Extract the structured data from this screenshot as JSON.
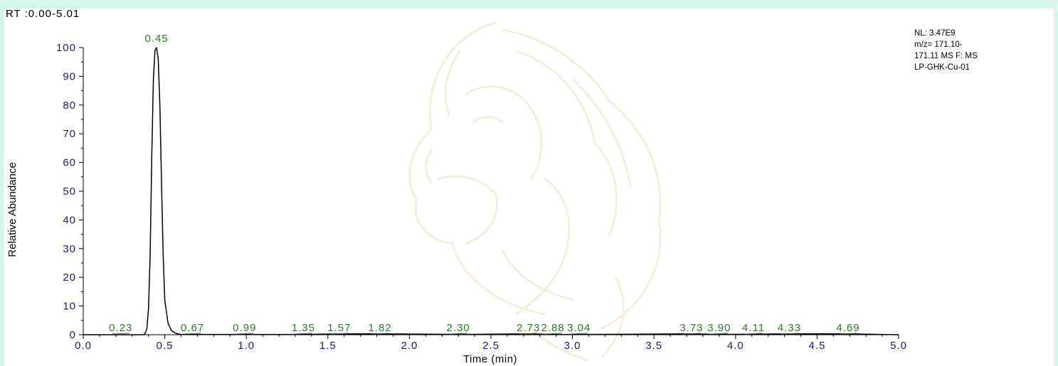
{
  "header": {
    "rt_range": "RT :0.00-5.01"
  },
  "info_box": {
    "lines": [
      "NL: 3.47E9",
      "m/z= 171.10-",
      "171.11 MS  F: MS",
      "LP-GHK-Cu-01"
    ]
  },
  "colors": {
    "trace": "#000000",
    "peak_labels": "#2a7a2a",
    "tick_labels": "#1c1c70",
    "background": "#d8f7ec"
  },
  "watermark": {
    "icon": "lion-head-watermark-icon"
  },
  "chart_data": {
    "type": "line",
    "title": "",
    "xlabel": "Time (min)",
    "ylabel": "Relative Abundance",
    "xlim": [
      0.0,
      5.0
    ],
    "ylim": [
      0,
      100
    ],
    "x_ticks": [
      "0.0",
      "0.5",
      "1.0",
      "1.5",
      "2.0",
      "2.5",
      "3.0",
      "3.5",
      "4.0",
      "4.5",
      "5.0"
    ],
    "y_ticks": [
      "0",
      "10",
      "20",
      "30",
      "40",
      "50",
      "60",
      "70",
      "80",
      "90",
      "100"
    ],
    "grid": false,
    "series": [
      {
        "x": [
          0.0,
          0.37,
          0.38,
          0.39,
          0.4,
          0.41,
          0.42,
          0.43,
          0.44,
          0.45,
          0.46,
          0.47,
          0.48,
          0.49,
          0.5,
          0.52,
          0.54,
          0.56,
          0.58,
          0.6,
          0.67,
          0.99,
          1.35,
          1.57,
          1.82,
          2.3,
          2.73,
          2.88,
          3.04,
          3.73,
          3.9,
          4.11,
          4.33,
          4.69,
          5.0
        ],
        "y": [
          0,
          0,
          0.5,
          2,
          9,
          27,
          62,
          89,
          99,
          100,
          96,
          80,
          53,
          28,
          12,
          4,
          1.5,
          0.7,
          0.3,
          0.1,
          0.1,
          0.1,
          0.1,
          0.3,
          0.3,
          0.1,
          0.3,
          0.1,
          0.1,
          0.3,
          0.1,
          0.2,
          0.3,
          0.3,
          0
        ]
      }
    ],
    "peak_labels": [
      {
        "x": 0.45,
        "y": 100,
        "label": "0.45"
      },
      {
        "x": 0.23,
        "y": 0,
        "label": "0.23"
      },
      {
        "x": 0.67,
        "y": 0,
        "label": "0.67"
      },
      {
        "x": 0.99,
        "y": 0,
        "label": "0.99"
      },
      {
        "x": 1.35,
        "y": 0,
        "label": "1.35"
      },
      {
        "x": 1.57,
        "y": 0,
        "label": "1.57"
      },
      {
        "x": 1.82,
        "y": 0,
        "label": "1.82"
      },
      {
        "x": 2.3,
        "y": 0,
        "label": "2.30"
      },
      {
        "x": 2.73,
        "y": 0,
        "label": "2.73"
      },
      {
        "x": 2.88,
        "y": 0,
        "label": "2.88"
      },
      {
        "x": 3.04,
        "y": 0,
        "label": "3.04"
      },
      {
        "x": 3.73,
        "y": 0,
        "label": "3.73"
      },
      {
        "x": 3.9,
        "y": 0,
        "label": "3.90"
      },
      {
        "x": 4.11,
        "y": 0,
        "label": "4.11"
      },
      {
        "x": 4.33,
        "y": 0,
        "label": "4.33"
      },
      {
        "x": 4.69,
        "y": 0,
        "label": "4.69"
      }
    ]
  }
}
